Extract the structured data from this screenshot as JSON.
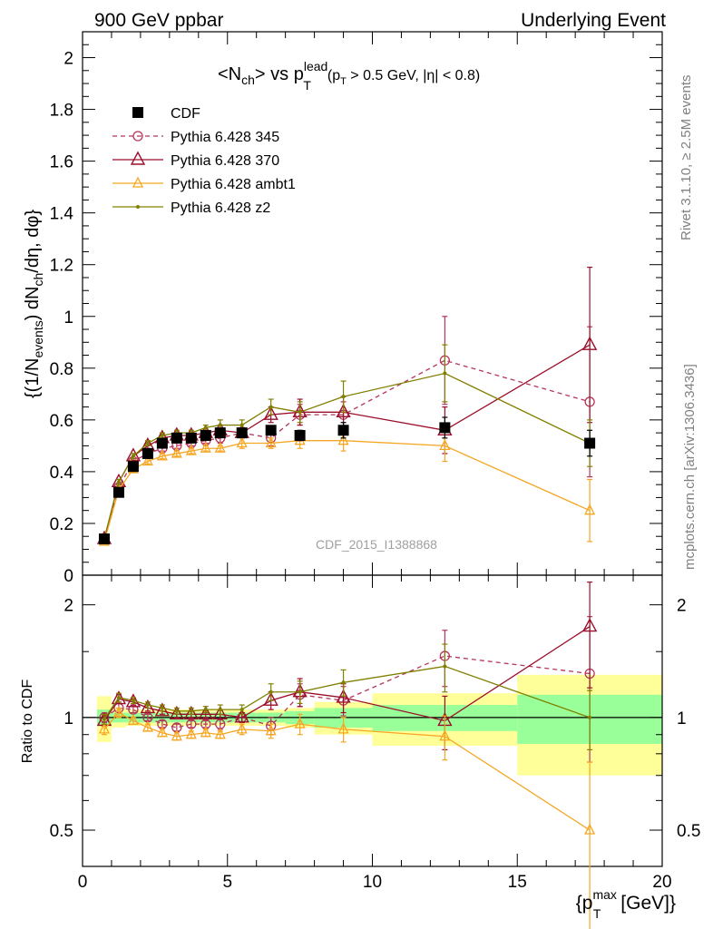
{
  "header": {
    "left": "900 GeV ppbar",
    "right": "Underlying Event"
  },
  "title": {
    "main": "<N",
    "sub1": "ch",
    "mid": "> vs p",
    "sup": "lead",
    "sub2": "T",
    "cut": "(p",
    "cut_sub": "T",
    "cut_rest": " > 0.5 GeV, |η| < 0.8)"
  },
  "side_labels": {
    "rivet": "Rivet 3.1.10, ≥ 2.5M events",
    "mcplots": "mcplots.cern.ch [arXiv:1306.3436]"
  },
  "watermark": "CDF_2015_I1388868",
  "colors": {
    "cdf": "#000000",
    "p345": "#b5365b",
    "p370": "#9b0e2b",
    "ambt1": "#f5a623",
    "z2": "#808000",
    "band_inner": "#99ff99",
    "band_outer": "#ffff99"
  },
  "chart_data": [
    {
      "type": "scatter",
      "title": "",
      "ylabel": "{(1/N_events) dN_ch/dη, dφ}",
      "xlabel": "",
      "xlim": [
        0,
        20
      ],
      "ylim": [
        0,
        2.1
      ],
      "yticks": [
        0,
        0.2,
        0.4,
        0.6,
        0.8,
        1,
        1.2,
        1.4,
        1.6,
        1.8,
        2
      ],
      "legend_position": "top-left",
      "series": [
        {
          "name": "CDF",
          "key": "cdf",
          "marker": "square",
          "x": [
            0.75,
            1.25,
            1.75,
            2.25,
            2.75,
            3.25,
            3.75,
            4.25,
            4.75,
            5.5,
            6.5,
            7.5,
            9,
            12.5,
            17.5
          ],
          "y": [
            0.14,
            0.32,
            0.42,
            0.47,
            0.51,
            0.53,
            0.53,
            0.54,
            0.55,
            0.55,
            0.56,
            0.54,
            0.56,
            0.57,
            0.51
          ],
          "err": [
            0.01,
            0.01,
            0.01,
            0.01,
            0.01,
            0.01,
            0.01,
            0.01,
            0.01,
            0.01,
            0.01,
            0.02,
            0.03,
            0.04,
            0.05
          ]
        },
        {
          "name": "Pythia 6.428 345",
          "key": "p345",
          "marker": "circle",
          "dashed": true,
          "x": [
            0.75,
            1.25,
            1.75,
            2.25,
            2.75,
            3.25,
            3.75,
            4.25,
            4.75,
            5.5,
            6.5,
            7.5,
            9,
            12.5,
            17.5
          ],
          "y": [
            0.14,
            0.34,
            0.44,
            0.47,
            0.49,
            0.5,
            0.51,
            0.52,
            0.53,
            0.55,
            0.53,
            0.62,
            0.62,
            0.83,
            0.67
          ],
          "err": [
            0.005,
            0.01,
            0.01,
            0.01,
            0.01,
            0.01,
            0.01,
            0.01,
            0.02,
            0.02,
            0.03,
            0.04,
            0.05,
            0.17,
            0.29
          ]
        },
        {
          "name": "Pythia 6.428 370",
          "key": "p370",
          "marker": "triangle",
          "x": [
            0.75,
            1.25,
            1.75,
            2.25,
            2.75,
            3.25,
            3.75,
            4.25,
            4.75,
            5.5,
            6.5,
            7.5,
            9,
            12.5,
            17.5
          ],
          "y": [
            0.14,
            0.36,
            0.46,
            0.5,
            0.53,
            0.54,
            0.54,
            0.55,
            0.56,
            0.55,
            0.62,
            0.63,
            0.63,
            0.56,
            0.89
          ],
          "err": [
            0.005,
            0.01,
            0.01,
            0.01,
            0.01,
            0.01,
            0.01,
            0.01,
            0.02,
            0.02,
            0.03,
            0.05,
            0.06,
            0.09,
            0.3
          ]
        },
        {
          "name": "Pythia 6.428 ambt1",
          "key": "ambt1",
          "marker": "triangle-small",
          "x": [
            0.75,
            1.25,
            1.75,
            2.25,
            2.75,
            3.25,
            3.75,
            4.25,
            4.75,
            5.5,
            6.5,
            7.5,
            9,
            12.5,
            17.5
          ],
          "y": [
            0.13,
            0.33,
            0.41,
            0.44,
            0.46,
            0.47,
            0.48,
            0.49,
            0.49,
            0.51,
            0.51,
            0.52,
            0.52,
            0.5,
            0.25
          ],
          "err": [
            0.005,
            0.01,
            0.01,
            0.01,
            0.01,
            0.01,
            0.01,
            0.01,
            0.01,
            0.02,
            0.02,
            0.03,
            0.04,
            0.06,
            0.12
          ]
        },
        {
          "name": "Pythia 6.428 z2",
          "key": "z2",
          "marker": "dot",
          "x": [
            0.75,
            1.25,
            1.75,
            2.25,
            2.75,
            3.25,
            3.75,
            4.25,
            4.75,
            5.5,
            6.5,
            7.5,
            9,
            12.5,
            17.5
          ],
          "y": [
            0.14,
            0.36,
            0.46,
            0.51,
            0.54,
            0.55,
            0.55,
            0.57,
            0.58,
            0.58,
            0.65,
            0.63,
            0.69,
            0.78,
            0.51
          ],
          "err": [
            0.005,
            0.01,
            0.01,
            0.01,
            0.01,
            0.01,
            0.01,
            0.01,
            0.02,
            0.02,
            0.03,
            0.04,
            0.06,
            0.11,
            0.09
          ]
        }
      ]
    },
    {
      "type": "scatter",
      "ylabel": "Ratio to CDF",
      "xlabel": "{p_T^max [GeV]}",
      "xlim": [
        0,
        20
      ],
      "ylim": [
        0.4,
        2.4
      ],
      "ylog": true,
      "yticks": [
        0.5,
        1,
        2
      ],
      "xticks": [
        0,
        5,
        10,
        15,
        20
      ],
      "bands": {
        "edges": [
          0.5,
          1,
          1.5,
          2,
          2.5,
          3,
          3.5,
          4,
          4.5,
          5,
          6,
          7,
          8,
          10,
          15,
          20
        ],
        "inner": [
          0.05,
          0.03,
          0.03,
          0.03,
          0.03,
          0.03,
          0.03,
          0.03,
          0.03,
          0.03,
          0.03,
          0.04,
          0.06,
          0.08,
          0.15
        ],
        "outer": [
          0.14,
          0.06,
          0.05,
          0.05,
          0.05,
          0.05,
          0.05,
          0.05,
          0.05,
          0.05,
          0.05,
          0.06,
          0.1,
          0.16,
          0.3
        ]
      },
      "series": [
        {
          "key": "p345",
          "marker": "circle",
          "dashed": true,
          "x": [
            0.75,
            1.25,
            1.75,
            2.25,
            2.75,
            3.25,
            3.75,
            4.25,
            4.75,
            5.5,
            6.5,
            7.5,
            9,
            12.5,
            17.5
          ],
          "y": [
            1,
            1.06,
            1.05,
            1,
            0.96,
            0.94,
            0.96,
            0.96,
            0.96,
            1,
            0.95,
            1.15,
            1.11,
            1.46,
            1.31
          ],
          "err": [
            0.03,
            0.03,
            0.02,
            0.02,
            0.02,
            0.02,
            0.02,
            0.02,
            0.03,
            0.03,
            0.05,
            0.08,
            0.1,
            0.25,
            0.55
          ]
        },
        {
          "key": "p370",
          "marker": "triangle",
          "x": [
            0.75,
            1.25,
            1.75,
            2.25,
            2.75,
            3.25,
            3.75,
            4.25,
            4.75,
            5.5,
            6.5,
            7.5,
            9,
            12.5,
            17.5
          ],
          "y": [
            0.98,
            1.12,
            1.1,
            1.06,
            1.04,
            1.02,
            1.02,
            1.02,
            1.02,
            1,
            1.11,
            1.17,
            1.13,
            0.98,
            1.75
          ],
          "err": [
            0.03,
            0.03,
            0.02,
            0.02,
            0.02,
            0.02,
            0.02,
            0.02,
            0.03,
            0.03,
            0.06,
            0.1,
            0.1,
            0.16,
            0.55
          ]
        },
        {
          "key": "ambt1",
          "marker": "triangle-small",
          "x": [
            0.75,
            1.25,
            1.75,
            2.25,
            2.75,
            3.25,
            3.75,
            4.25,
            4.75,
            5.5,
            6.5,
            7.5,
            9,
            12.5,
            17.5
          ],
          "y": [
            0.93,
            1.03,
            0.98,
            0.94,
            0.91,
            0.89,
            0.9,
            0.91,
            0.9,
            0.93,
            0.92,
            0.96,
            0.93,
            0.89,
            0.5
          ],
          "err": [
            0.03,
            0.03,
            0.02,
            0.02,
            0.02,
            0.02,
            0.02,
            0.02,
            0.02,
            0.03,
            0.04,
            0.06,
            0.07,
            0.12,
            0.26
          ]
        },
        {
          "key": "z2",
          "marker": "dot",
          "x": [
            0.75,
            1.25,
            1.75,
            2.25,
            2.75,
            3.25,
            3.75,
            4.25,
            4.75,
            5.5,
            6.5,
            7.5,
            9,
            12.5,
            17.5
          ],
          "y": [
            0.99,
            1.13,
            1.11,
            1.08,
            1.06,
            1.04,
            1.04,
            1.05,
            1.05,
            1.05,
            1.17,
            1.17,
            1.24,
            1.37,
            1
          ],
          "err": [
            0.03,
            0.03,
            0.02,
            0.02,
            0.02,
            0.02,
            0.02,
            0.02,
            0.03,
            0.03,
            0.06,
            0.08,
            0.1,
            0.2,
            0.18
          ]
        }
      ]
    }
  ]
}
